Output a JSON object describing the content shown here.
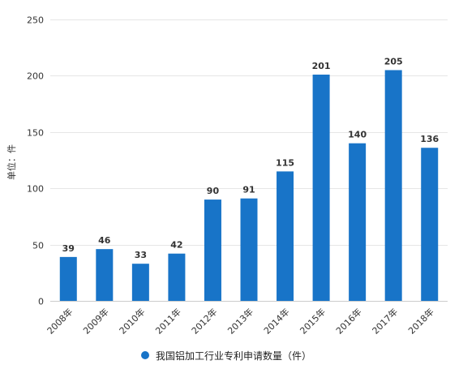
{
  "chart_data": {
    "type": "bar",
    "categories": [
      "2008年",
      "2009年",
      "2010年",
      "2011年",
      "2012年",
      "2013年",
      "2014年",
      "2015年",
      "2016年",
      "2017年",
      "2018年"
    ],
    "values": [
      39,
      46,
      33,
      42,
      90,
      91,
      115,
      201,
      140,
      205,
      136
    ],
    "series": [
      {
        "name": "我国铝加工行业专利申请数量（件）",
        "values": [
          39,
          46,
          33,
          42,
          90,
          91,
          115,
          201,
          140,
          205,
          136
        ]
      }
    ],
    "ylabel": "单位：件",
    "xlabel": "",
    "ylim": [
      0,
      250
    ],
    "yticks": [
      0,
      50,
      100,
      150,
      200,
      250
    ],
    "grid": true,
    "legend_position": "bottom",
    "bar_color": "#1874c8",
    "grid_color": "#e6e6e6"
  }
}
